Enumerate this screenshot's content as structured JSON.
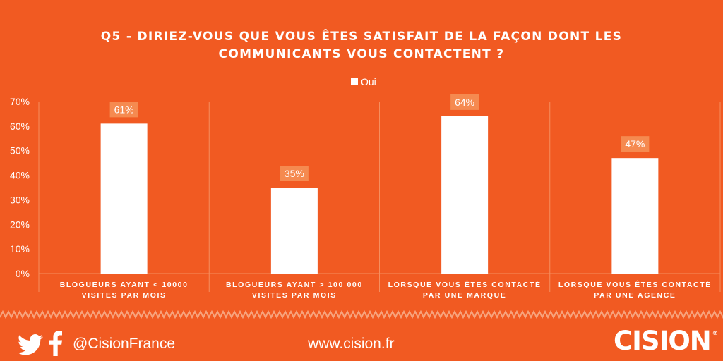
{
  "header": {
    "title_line1": "Q5 - DIRIEZ-VOUS QUE VOUS ÊTES SATISFAIT DE LA FAÇON DONT LES",
    "title_line2": "COMMUNICANTS VOUS CONTACTENT ?"
  },
  "chart_data": {
    "type": "bar",
    "title": "Q5 - DIRIEZ-VOUS QUE VOUS ÊTES SATISFAIT DE LA FAÇON DONT LES COMMUNICANTS VOUS CONTACTENT ?",
    "categories": [
      [
        "BLOGUEURS AYANT < 10000",
        "VISITES PAR MOIS"
      ],
      [
        "BLOGUEURS AYANT > 100 000",
        "VISITES PAR MOIS"
      ],
      [
        "LORSQUE VOUS ÊTES CONTACTÉ",
        "PAR UNE MARQUE"
      ],
      [
        "LORSQUE VOUS ÊTES CONTACTÉ",
        "PAR UNE AGENCE"
      ]
    ],
    "series": [
      {
        "name": "Oui",
        "values": [
          61,
          35,
          64,
          47
        ]
      }
    ],
    "data_labels": [
      "61%",
      "35%",
      "64%",
      "47%"
    ],
    "ylim": [
      0,
      70
    ],
    "yticks": [
      "0%",
      "10%",
      "20%",
      "30%",
      "40%",
      "50%",
      "60%",
      "70%"
    ],
    "legend_position": "top-center",
    "colors": {
      "bar": "#FFFFFF",
      "label_bg": "#F58A50",
      "background": "#F15A22",
      "grid": "#F58E5E"
    }
  },
  "footer": {
    "twitter_icon": "twitter-bird",
    "facebook_icon": "facebook-f",
    "handle": "@CisionFrance",
    "website": "www.cision.fr",
    "brand": "CISION",
    "brand_mark": "®"
  }
}
